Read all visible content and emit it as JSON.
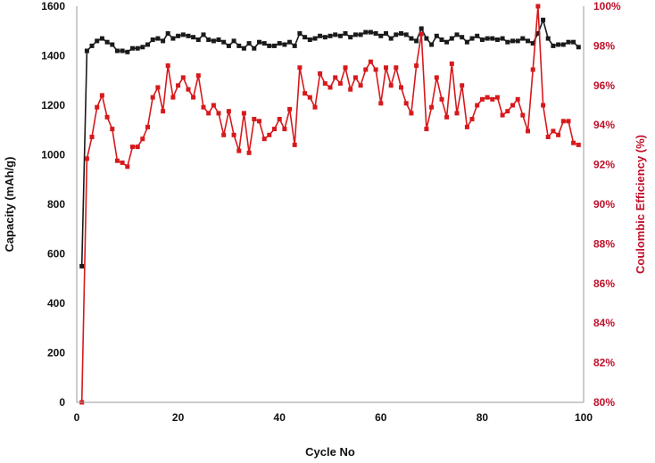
{
  "chart_data": {
    "type": "line",
    "title": "",
    "xlabel": "Cycle No",
    "ylabel_left": "Capacity (mAh/g)",
    "ylabel_right": "Coulombic Efficiency (%)",
    "xlim": [
      0,
      100
    ],
    "ylim_left": [
      0,
      1600
    ],
    "ylim_right": [
      80,
      100
    ],
    "x_ticks": [
      "0",
      "20",
      "40",
      "60",
      "80",
      "100"
    ],
    "y_left_ticks": [
      "0",
      "200",
      "400",
      "600",
      "800",
      "1000",
      "1200",
      "1400",
      "1600"
    ],
    "y_right_ticks": [
      "80%",
      "82%",
      "84%",
      "86%",
      "88%",
      "90%",
      "92%",
      "94%",
      "96%",
      "98%",
      "100%"
    ],
    "grid": false,
    "legend": "none",
    "colors": {
      "capacity": "#1a1a1a",
      "efficiency": "#d7191c",
      "right_axis_text": "#c0102a"
    },
    "x": [
      1,
      2,
      3,
      4,
      5,
      6,
      7,
      8,
      9,
      10,
      11,
      12,
      13,
      14,
      15,
      16,
      17,
      18,
      19,
      20,
      21,
      22,
      23,
      24,
      25,
      26,
      27,
      28,
      29,
      30,
      31,
      32,
      33,
      34,
      35,
      36,
      37,
      38,
      39,
      40,
      41,
      42,
      43,
      44,
      45,
      46,
      47,
      48,
      49,
      50,
      51,
      52,
      53,
      54,
      55,
      56,
      57,
      58,
      59,
      60,
      61,
      62,
      63,
      64,
      65,
      66,
      67,
      68,
      69,
      70,
      71,
      72,
      73,
      74,
      75,
      76,
      77,
      78,
      79,
      80,
      81,
      82,
      83,
      84,
      85,
      86,
      87,
      88,
      89,
      90,
      91,
      92,
      93,
      94,
      95,
      96,
      97,
      98,
      99
    ],
    "series": [
      {
        "axis": "left",
        "values": [
          550,
          1420,
          1440,
          1460,
          1470,
          1455,
          1445,
          1420,
          1420,
          1415,
          1430,
          1430,
          1435,
          1445,
          1465,
          1470,
          1460,
          1490,
          1470,
          1480,
          1485,
          1480,
          1475,
          1465,
          1485,
          1465,
          1460,
          1465,
          1455,
          1440,
          1460,
          1440,
          1430,
          1450,
          1430,
          1455,
          1450,
          1440,
          1440,
          1450,
          1445,
          1455,
          1440,
          1490,
          1475,
          1465,
          1470,
          1480,
          1475,
          1480,
          1485,
          1480,
          1490,
          1475,
          1485,
          1485,
          1495,
          1495,
          1490,
          1480,
          1490,
          1470,
          1485,
          1490,
          1485,
          1470,
          1460,
          1510,
          1470,
          1445,
          1480,
          1465,
          1455,
          1470,
          1485,
          1475,
          1455,
          1470,
          1480,
          1465,
          1470,
          1470,
          1465,
          1470,
          1455,
          1460,
          1460,
          1470,
          1460,
          1450,
          1490,
          1545,
          1470,
          1440,
          1445,
          1445,
          1455,
          1455,
          1435
        ]
      },
      {
        "axis": "right",
        "values": [
          80.0,
          92.3,
          93.4,
          94.9,
          95.5,
          94.4,
          93.8,
          92.2,
          92.1,
          91.9,
          92.9,
          92.9,
          93.3,
          93.9,
          95.4,
          95.9,
          94.7,
          97.0,
          95.4,
          96.0,
          96.4,
          95.8,
          95.4,
          96.5,
          94.9,
          94.6,
          95.0,
          94.6,
          93.5,
          94.7,
          93.5,
          92.7,
          94.6,
          92.6,
          94.3,
          94.2,
          93.3,
          93.5,
          93.8,
          94.3,
          93.8,
          94.8,
          93.0,
          96.9,
          95.6,
          95.4,
          94.9,
          96.6,
          96.1,
          95.9,
          96.4,
          96.1,
          96.9,
          95.8,
          96.4,
          96.0,
          96.8,
          97.2,
          96.8,
          95.1,
          96.9,
          96.0,
          96.9,
          95.9,
          95.1,
          94.6,
          97.0,
          98.6,
          93.8,
          94.9,
          96.4,
          95.3,
          94.4,
          97.1,
          94.6,
          96.0,
          93.9,
          94.3,
          95.0,
          95.3,
          95.4,
          95.3,
          95.4,
          94.5,
          94.7,
          95.0,
          95.3,
          94.5,
          93.7,
          96.8,
          100.0,
          95.0,
          93.4,
          93.7,
          93.5,
          94.2,
          94.2,
          93.1,
          93.0
        ]
      }
    ]
  }
}
